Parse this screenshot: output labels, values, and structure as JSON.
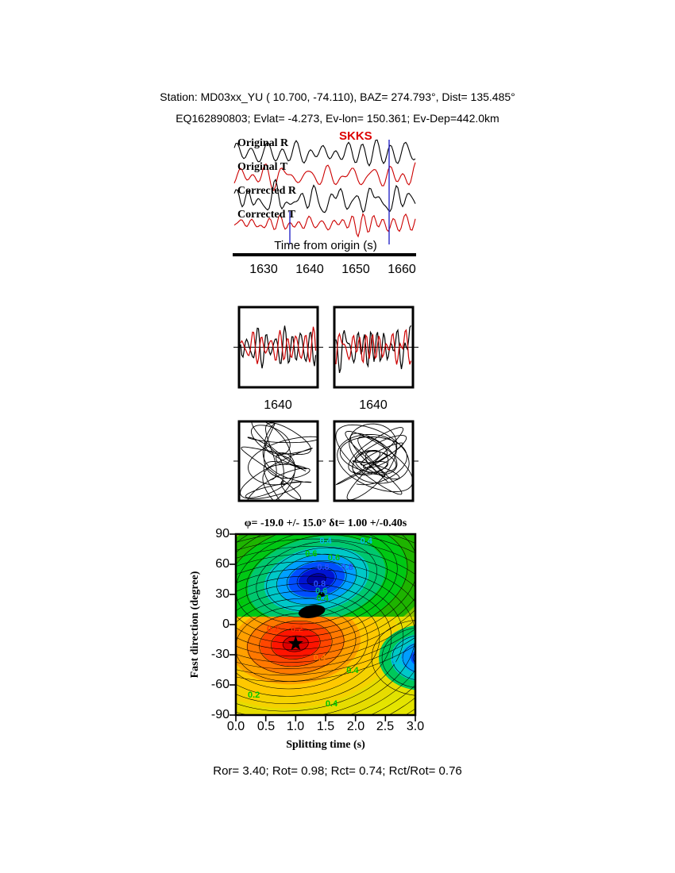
{
  "header": {
    "line1": "Station: MD03xx_YU (  10.700,  -74.110), BAZ=  274.793°, Dist=  135.485°",
    "line2": "EQ162890803; Evlat=  -4.273, Ev-lon= 150.361; Ev-Dep=442.0km"
  },
  "waveforms": {
    "labels": [
      "Original R",
      "Original T",
      "Corrected R",
      "Corrected T"
    ],
    "phase_label": "SKKS",
    "phase_color": "#dd0000",
    "axis_label": "Time from origin (s)",
    "ticks": [
      "1630",
      "1640",
      "1650",
      "1660"
    ]
  },
  "zoom_panels": {
    "left_tick": "1640",
    "right_tick": "1640"
  },
  "contour": {
    "title": "φ= -19.0 +/- 15.0°  δt= 1.00 +/-0.40s",
    "ylabel": "Fast direction (degree)",
    "xlabel": "Splitting time (s)",
    "yticks": [
      "90",
      "60",
      "30",
      "0",
      "-30",
      "-60",
      "-90"
    ],
    "xticks": [
      "0.0",
      "0.5",
      "1.0",
      "1.5",
      "2.0",
      "2.5",
      "3.0"
    ]
  },
  "footer": {
    "text": "Ror= 3.40; Rot= 0.98; Rct= 0.74; Rct/Rot= 0.76",
    "Ror": 3.4,
    "Rot": 0.98,
    "Rct": 0.74,
    "Rct_over_Rot": 0.76
  },
  "chart_data": {
    "type": "heatmap",
    "subtype": "splitting-misfit-contour",
    "title": "φ= -19.0 +/- 15.0°  δt= 1.00 +/-0.40s",
    "xlabel": "Splitting time (s)",
    "ylabel": "Fast direction (degree)",
    "xlim": [
      0.0,
      3.0
    ],
    "ylim": [
      -90,
      90
    ],
    "xticks": [
      0.0,
      0.5,
      1.0,
      1.5,
      2.0,
      2.5,
      3.0
    ],
    "yticks": [
      90,
      60,
      30,
      0,
      -30,
      -60,
      -90
    ],
    "best_fit": {
      "fast_direction_deg": -19.0,
      "fast_direction_err_deg": 15.0,
      "splitting_time_s": 1.0,
      "splitting_time_err_s": 0.4,
      "marker": "star",
      "position": [
        1.0,
        -19.0
      ]
    },
    "minima": [
      {
        "t": 1.0,
        "phi": -19,
        "kind": "global-min-red"
      },
      {
        "t": 1.35,
        "phi": 45,
        "kind": "local-min-blue"
      },
      {
        "t": 3.12,
        "phi": -33,
        "kind": "edge-min-cyan"
      }
    ],
    "contour_levels": [
      0.2,
      0.4,
      0.6,
      0.8
    ],
    "labels": [
      {
        "text": "0.4",
        "t": 1.5,
        "phi": 83,
        "color": "#00b8ee"
      },
      {
        "text": "0.4",
        "t": 2.18,
        "phi": 83,
        "color": "#00b8ee"
      },
      {
        "text": "0.6",
        "t": 1.26,
        "phi": 70,
        "color": "#00cc00"
      },
      {
        "text": "0.6",
        "t": 1.64,
        "phi": 66,
        "color": "#00cc00"
      },
      {
        "text": "0.8",
        "t": 1.46,
        "phi": 57,
        "color": "#2850ff"
      },
      {
        "text": "0.8",
        "t": 1.86,
        "phi": 57,
        "color": "#2850ff"
      },
      {
        "text": "0.8",
        "t": 1.4,
        "phi": 40,
        "color": "#2850ff"
      },
      {
        "text": "0.6",
        "t": 1.43,
        "phi": 33,
        "color": "#00b48c"
      },
      {
        "text": "0.4",
        "t": 1.45,
        "phi": 26,
        "color": "#00c800"
      },
      {
        "text": "+",
        "t": 0.1,
        "phi": 21,
        "color": "#00c800"
      },
      {
        "text": "0.2",
        "t": 0.62,
        "phi": -5,
        "color": "#ff3200"
      },
      {
        "text": "0.2",
        "t": 1.02,
        "phi": -5,
        "color": "#ff3200"
      },
      {
        "text": "0.4",
        "t": 1.4,
        "phi": -33,
        "color": "#ff7800"
      },
      {
        "text": "0.4",
        "t": 1.95,
        "phi": -46,
        "color": "#00c800"
      },
      {
        "text": "0.6",
        "t": 2.7,
        "phi": -37,
        "color": "#00b8ee"
      },
      {
        "text": "0.2",
        "t": 0.3,
        "phi": -70,
        "color": "#00c800"
      },
      {
        "text": "0.4",
        "t": 1.6,
        "phi": -79,
        "color": "#00c800"
      }
    ],
    "colors": {
      "global_min_core": "#dc0000",
      "local_min_core": "#0000a0",
      "background": "#e6e600",
      "trace_r": "#000000",
      "trace_t": "#cc0000",
      "pick_line": "#2828c8"
    }
  }
}
